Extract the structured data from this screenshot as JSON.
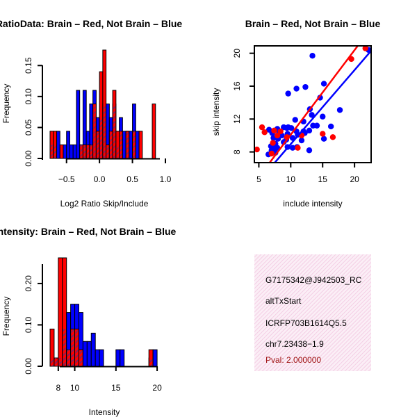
{
  "chart_data": [
    {
      "type": "bar",
      "title": "RatioData: Brain – Red, Not Brain – Blue",
      "xlabel": "Log2 Ratio Skip/Include",
      "ylabel": "Frequency",
      "xlim": [
        -0.75,
        1.0
      ],
      "ylim": [
        0,
        0.175
      ],
      "bin_width": 0.05,
      "x_ticks": [
        -0.5,
        0.0,
        0.5,
        1.0
      ],
      "x_tick_labels": [
        "−0.5",
        "0.0",
        "0.5",
        "1.0"
      ],
      "y_ticks": [
        0.0,
        0.05,
        0.1,
        0.15
      ],
      "y_tick_labels": [
        "0.00",
        "0.05",
        "0.10",
        "0.15"
      ],
      "bin_starts": [
        -0.75,
        -0.7,
        -0.65,
        -0.6,
        -0.55,
        -0.5,
        -0.45,
        -0.4,
        -0.35,
        -0.3,
        -0.25,
        -0.2,
        -0.15,
        -0.1,
        -0.05,
        0.0,
        0.05,
        0.1,
        0.15,
        0.2,
        0.25,
        0.3,
        0.35,
        0.4,
        0.45,
        0.5,
        0.55,
        0.6,
        0.65,
        0.7,
        0.75,
        0.8,
        0.85,
        0.9,
        0.95
      ],
      "series": [
        {
          "name": "Not Brain",
          "color": "#0000ff",
          "values": [
            0.022,
            0.022,
            0.044,
            0,
            0.022,
            0.044,
            0.022,
            0.022,
            0.11,
            0.022,
            0.11,
            0.044,
            0.088,
            0.11,
            0.066,
            0.066,
            0.088,
            0.088,
            0.066,
            0.088,
            0.022,
            0.066,
            0.044,
            0.044,
            0.044,
            0.088,
            0.044,
            0,
            0,
            0,
            0,
            0,
            0,
            0,
            0
          ]
        },
        {
          "name": "Brain",
          "color": "#ff0000",
          "values": [
            0.044,
            0.044,
            0,
            0.022,
            0,
            0,
            0,
            0,
            0,
            0.022,
            0.022,
            0.022,
            0.022,
            0.088,
            0.044,
            0.14,
            0.175,
            0.022,
            0.044,
            0.11,
            0.044,
            0.044,
            0,
            0.044,
            0,
            0.044,
            0,
            0.044,
            0,
            0,
            0,
            0.088,
            0,
            0,
            0
          ]
        }
      ]
    },
    {
      "type": "scatter",
      "title": "Brain – Red, Not Brain – Blue",
      "xlabel": "include intensity",
      "ylabel": "skip intensity",
      "xlim": [
        4.3,
        22.6
      ],
      "ylim": [
        6.7,
        20.9
      ],
      "x_ticks": [
        5,
        10,
        15,
        20
      ],
      "y_ticks": [
        8,
        12,
        16,
        20
      ],
      "series": [
        {
          "name": "Not Brain",
          "color": "#0000ff",
          "points": [
            [
              13.4,
              19.7
            ],
            [
              22.2,
              20.4
            ],
            [
              15.2,
              16.3
            ],
            [
              10.9,
              15.7
            ],
            [
              12.3,
              15.9
            ],
            [
              9.6,
              15.1
            ],
            [
              14.6,
              14.6
            ],
            [
              13.0,
              13.2
            ],
            [
              17.7,
              13.1
            ],
            [
              13.3,
              12.5
            ],
            [
              15.0,
              12.3
            ],
            [
              12.0,
              11.7
            ],
            [
              10.7,
              11.9
            ],
            [
              8.9,
              11.0
            ],
            [
              9.6,
              11.0
            ],
            [
              13.5,
              11.2
            ],
            [
              14.1,
              11.2
            ],
            [
              16.3,
              11.1
            ],
            [
              6.6,
              10.7
            ],
            [
              7.9,
              10.8
            ],
            [
              9.4,
              10.9
            ],
            [
              10.1,
              10.9
            ],
            [
              10.9,
              10.5
            ],
            [
              12.0,
              10.5
            ],
            [
              12.9,
              10.6
            ],
            [
              7.1,
              10.3
            ],
            [
              8.2,
              10.3
            ],
            [
              8.6,
              10.0
            ],
            [
              9.5,
              10.2
            ],
            [
              11.1,
              10.1
            ],
            [
              12.2,
              10.3
            ],
            [
              15.2,
              9.6
            ],
            [
              7.3,
              9.7
            ],
            [
              8.0,
              9.6
            ],
            [
              9.3,
              9.5
            ],
            [
              10.3,
              9.7
            ],
            [
              11.7,
              9.4
            ],
            [
              7.6,
              9.0
            ],
            [
              8.9,
              9.2
            ],
            [
              7.2,
              8.9
            ],
            [
              6.9,
              8.7
            ],
            [
              9.5,
              8.6
            ],
            [
              10.3,
              8.5
            ],
            [
              11.0,
              8.6
            ],
            [
              7.4,
              8.3
            ],
            [
              7.9,
              8.5
            ],
            [
              7.0,
              8.2
            ],
            [
              12.9,
              8.2
            ],
            [
              7.6,
              7.9
            ],
            [
              6.5,
              7.7
            ]
          ]
        },
        {
          "name": "Brain",
          "color": "#ff0000",
          "points": [
            [
              21.7,
              20.6
            ],
            [
              19.5,
              19.3
            ],
            [
              5.5,
              11.0
            ],
            [
              7.4,
              10.6
            ],
            [
              8.4,
              10.5
            ],
            [
              5.9,
              10.4
            ],
            [
              11.7,
              10.0
            ],
            [
              15.0,
              10.2
            ],
            [
              7.9,
              10.0
            ],
            [
              9.4,
              9.8
            ],
            [
              16.6,
              9.8
            ],
            [
              7.2,
              9.1
            ],
            [
              4.7,
              8.3
            ],
            [
              11.1,
              8.5
            ],
            [
              7.0,
              7.8
            ]
          ]
        }
      ],
      "fit_lines": [
        {
          "name": "Brain fit",
          "color": "#ff0000",
          "from": [
            6.7,
            6.7
          ],
          "to": [
            20.5,
            20.9
          ]
        },
        {
          "name": "Not Brain fit",
          "color": "#0000ff",
          "from": [
            7.5,
            6.7
          ],
          "to": [
            22.6,
            20.3
          ]
        }
      ]
    },
    {
      "type": "bar",
      "title": "Intensity: Brain – Red, Not Brain – Blue",
      "xlabel": "Intensity",
      "ylabel": "Frequency",
      "xlim": [
        7.0,
        20.5
      ],
      "ylim": [
        0,
        0.262
      ],
      "bin_width": 0.5,
      "x_ticks": [
        8,
        10,
        15,
        20
      ],
      "y_ticks": [
        0.0,
        0.1,
        0.2
      ],
      "y_tick_labels": [
        "0.00",
        "0.10",
        "0.20"
      ],
      "bin_starts": [
        7.0,
        7.5,
        8.0,
        8.5,
        9.0,
        9.5,
        10.0,
        10.5,
        11.0,
        11.5,
        12.0,
        12.5,
        13.0,
        13.5,
        14.0,
        14.5,
        15.0,
        15.5,
        16.0,
        16.5,
        17.0,
        17.5,
        18.0,
        18.5,
        19.0,
        19.5,
        20.0
      ],
      "series": [
        {
          "name": "Not Brain",
          "color": "#0000ff",
          "values": [
            0.02,
            0.02,
            0.02,
            0.09,
            0.13,
            0.15,
            0.15,
            0.13,
            0.06,
            0.06,
            0.08,
            0.04,
            0.04,
            0,
            0,
            0,
            0.04,
            0.04,
            0,
            0,
            0,
            0,
            0,
            0,
            0.02,
            0.04,
            0
          ]
        },
        {
          "name": "Brain",
          "color": "#ff0000",
          "values": [
            0.09,
            0.02,
            0.262,
            0.262,
            0.04,
            0.09,
            0.09,
            0.04,
            0,
            0,
            0,
            0,
            0,
            0,
            0,
            0,
            0,
            0,
            0,
            0,
            0,
            0,
            0,
            0,
            0.04,
            0,
            0
          ]
        }
      ]
    }
  ],
  "info_panel": {
    "lines": [
      "G7175342@J942503_RC",
      "altTxStart",
      "ICRFP703B1614Q5.5",
      "chr7.23438−1.9"
    ],
    "pval": "Pval: 2.000000"
  }
}
